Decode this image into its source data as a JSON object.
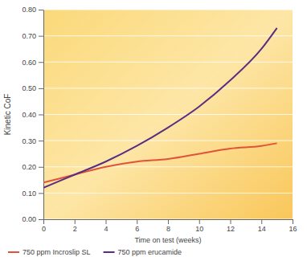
{
  "chart_data": {
    "type": "line",
    "x_label": "Time on test (weeks)",
    "y_label": "Kinetic CoF",
    "x": [
      0,
      2,
      4,
      6,
      8,
      10,
      12,
      14,
      15
    ],
    "series": [
      {
        "name": "750 ppm Incroslip SL",
        "color": "#e0533a",
        "values": [
          0.14,
          0.17,
          0.2,
          0.22,
          0.23,
          0.25,
          0.27,
          0.28,
          0.29
        ]
      },
      {
        "name": "750 ppm erucamide",
        "color": "#5a2d82",
        "values": [
          0.12,
          0.17,
          0.22,
          0.28,
          0.35,
          0.43,
          0.53,
          0.65,
          0.73
        ]
      }
    ],
    "xlim": [
      0,
      16
    ],
    "xticks": [
      0,
      2,
      4,
      6,
      8,
      10,
      12,
      14,
      16
    ],
    "ylim": [
      0,
      0.8
    ],
    "yticks": [
      {
        "value": 0,
        "label": "0.00"
      },
      {
        "value": 0.1,
        "label": "0.10"
      },
      {
        "value": 0.2,
        "label": "0.20"
      },
      {
        "value": 0.3,
        "label": "0.30"
      },
      {
        "value": 0.4,
        "label": "0.40"
      },
      {
        "value": 0.5,
        "label": "0.50"
      },
      {
        "value": 0.6,
        "label": "0.60"
      },
      {
        "value": 0.7,
        "label": "0.70"
      },
      {
        "value": 0.8,
        "label": "0.80"
      }
    ],
    "grid": true,
    "legend": "bottom",
    "line_style": "solid"
  }
}
